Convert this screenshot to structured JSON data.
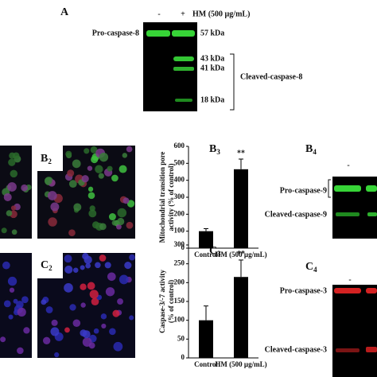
{
  "panel_a": {
    "label": "A",
    "lanes": [
      "-",
      "+"
    ],
    "treatment": "HM (500 µg/mL)",
    "band_label": "Pro-caspase-8",
    "markers": [
      "57 kDa",
      "43 kDa",
      "41 kDa",
      "18 kDa"
    ],
    "cleaved_label": "Cleaved-caspase-8"
  },
  "panel_b2": {
    "letter": "B",
    "sub": "2"
  },
  "chart_b3": {
    "type": "bar",
    "letter": "B",
    "sub": "3",
    "ylabel": [
      "Mitochondrial transition pore",
      "activity (% of control)"
    ],
    "categories": [
      "Control",
      "HM (500 µg/mL)"
    ],
    "values": [
      100,
      465
    ],
    "errors": [
      15,
      60
    ],
    "annotation": "**",
    "ylim": [
      0,
      600
    ],
    "yticks": [
      0,
      100,
      200,
      300,
      400,
      500,
      600
    ],
    "color": "#000000"
  },
  "panel_b4": {
    "letter": "B",
    "sub": "4",
    "lanes": [
      "-"
    ],
    "labels": [
      "Pro-caspase-9",
      "Cleaved-caspase-9"
    ]
  },
  "panel_c2": {
    "letter": "C",
    "sub": "2"
  },
  "chart_c3": {
    "type": "bar",
    "letter": "C",
    "sub": "3",
    "ylabel": [
      "Caspase-3/-7 activity",
      "(% of control)"
    ],
    "categories": [
      "Control",
      "HM (500 µg/mL)"
    ],
    "values": [
      100,
      215
    ],
    "errors": [
      38,
      45
    ],
    "annotation": "**",
    "ylim": [
      0,
      300
    ],
    "yticks": [
      0,
      50,
      100,
      150,
      200,
      250,
      300
    ],
    "color": "#000000"
  },
  "panel_c4": {
    "letter": "C",
    "sub": "4",
    "lanes": [
      "-"
    ],
    "labels": [
      "Pro-caspase-3",
      "Cleaved-caspase-3"
    ]
  }
}
